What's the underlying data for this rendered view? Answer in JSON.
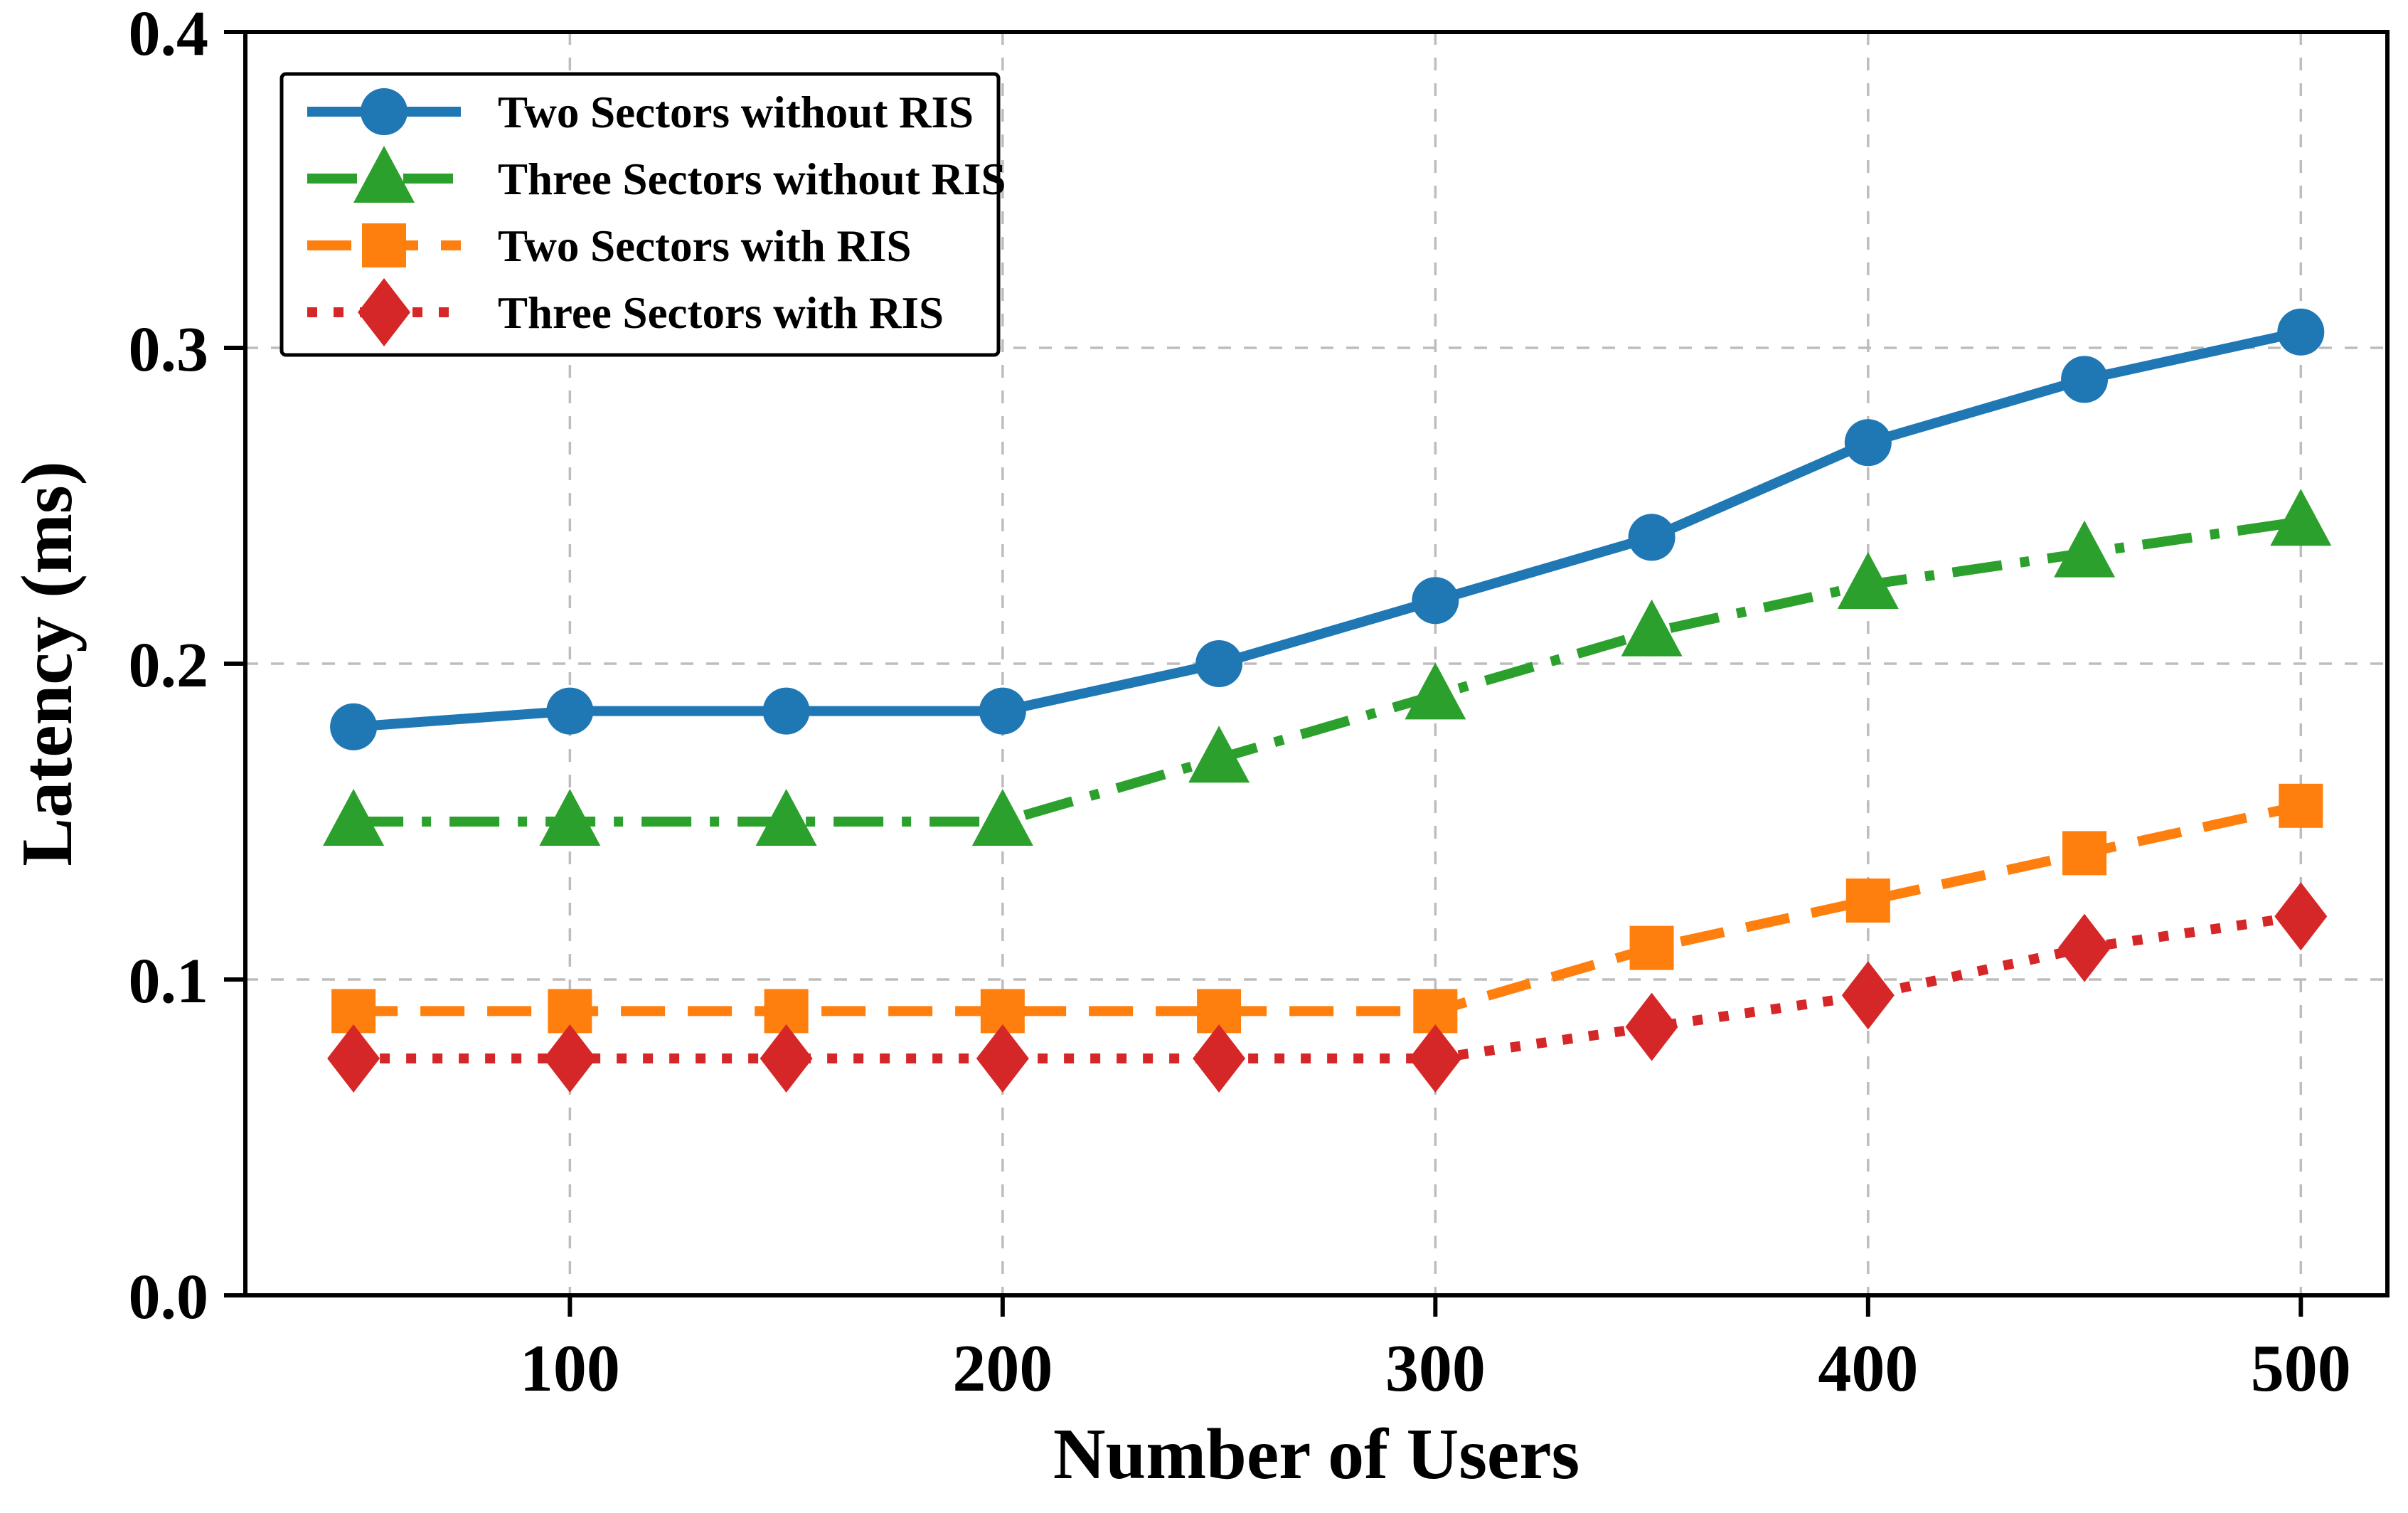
{
  "figure": {
    "background": "#ffffff",
    "plot_border_color": "#000000",
    "gridline_color": "#bdbdbd"
  },
  "chart_data": {
    "type": "line",
    "title": "",
    "xlabel": "Number of Users",
    "ylabel": "Latency (ms)",
    "x": [
      50,
      100,
      150,
      200,
      250,
      300,
      350,
      400,
      450,
      500
    ],
    "xticks": [
      100,
      200,
      300,
      400,
      500
    ],
    "xtick_labels": [
      "100",
      "200",
      "300",
      "400",
      "500"
    ],
    "yticks": [
      0.0,
      0.1,
      0.2,
      0.3,
      0.4
    ],
    "ytick_labels": [
      "0.0",
      "0.1",
      "0.2",
      "0.3",
      "0.4"
    ],
    "xlim": [
      25,
      520
    ],
    "ylim": [
      0.0,
      0.4
    ],
    "grid": true,
    "grid_style": "dashed",
    "legend_position": "upper-left",
    "series": [
      {
        "name": "Two Sectors without RIS",
        "color": "#1f77b4",
        "linestyle": "solid",
        "marker": "circle",
        "values": [
          0.18,
          0.185,
          0.185,
          0.185,
          0.2,
          0.22,
          0.24,
          0.27,
          0.29,
          0.305
        ]
      },
      {
        "name": "Three Sectors without RIS",
        "color": "#2ca02c",
        "linestyle": "dashdot",
        "marker": "triangle-up",
        "values": [
          0.15,
          0.15,
          0.15,
          0.15,
          0.17,
          0.19,
          0.21,
          0.225,
          0.235,
          0.245
        ]
      },
      {
        "name": "Two Sectors with RIS",
        "color": "#ff7f0e",
        "linestyle": "dashed",
        "marker": "square",
        "values": [
          0.09,
          0.09,
          0.09,
          0.09,
          0.09,
          0.09,
          0.11,
          0.125,
          0.14,
          0.155
        ]
      },
      {
        "name": "Three Sectors with RIS",
        "color": "#d62728",
        "linestyle": "dotted",
        "marker": "diamond",
        "values": [
          0.075,
          0.075,
          0.075,
          0.075,
          0.075,
          0.075,
          0.085,
          0.095,
          0.11,
          0.12
        ]
      }
    ]
  }
}
